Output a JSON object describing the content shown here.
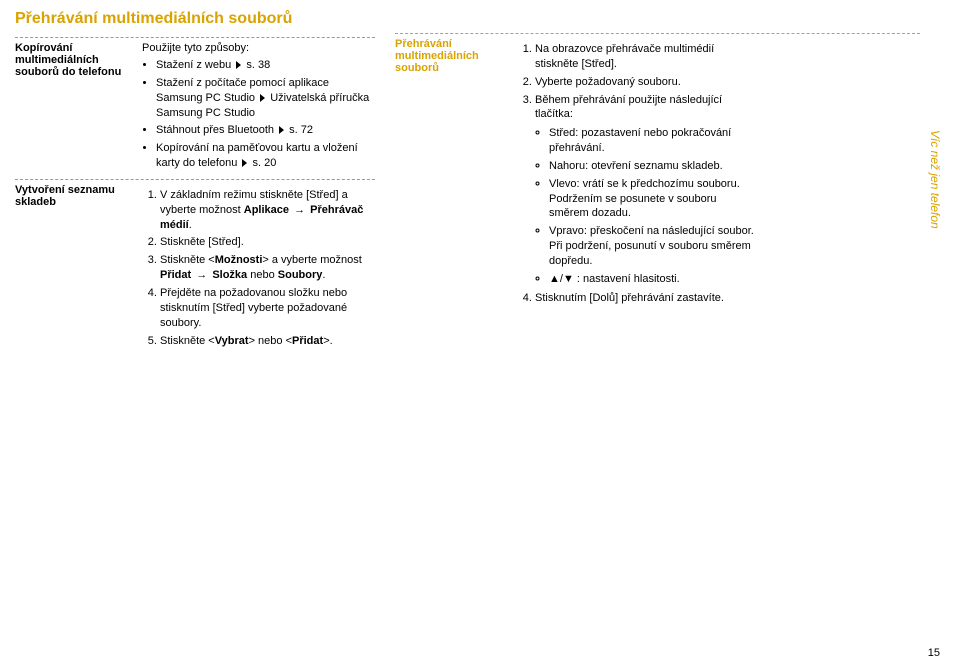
{
  "title": "Přehrávání multimediálních souborů",
  "leftBlock": {
    "section1": {
      "label": "Kopírování multimediálních souborů do telefonu",
      "intro": "Použijte tyto způsoby:",
      "items": {
        "a": "Stažení z webu",
        "a_page": "s. 38",
        "b": "Stažení z počítače pomocí aplikace Samsung PC Studio",
        "b_ref": "Uživatelská příručka Samsung PC Studio",
        "c": "Stáhnout přes Bluetooth",
        "c_page": "s. 72",
        "d": "Kopírování na paměťovou kartu a vložení karty do telefonu",
        "d_page": "s. 20"
      }
    },
    "section2": {
      "label": "Vytvoření seznamu skladeb",
      "steps": {
        "s1a": "V základním režimu stiskněte [Střed] a vyberte možnost ",
        "s1b": "Aplikace",
        "s1c": "Přehrávač médií",
        "s2": "Stiskněte [Střed].",
        "s3a": "Stiskněte <",
        "s3b": "Možnosti",
        "s3c": "> a vyberte možnost ",
        "s3d": "Přidat",
        "s3e": "Složka",
        "s3f": " nebo ",
        "s3g": "Soubory",
        "s4": "Přejděte na požadovanou složku nebo stisknutím [Střed] vyberte požadované soubory.",
        "s5a": "Stiskněte <",
        "s5b": "Vybrat",
        "s5c": "> nebo <",
        "s5d": "Přidat",
        "s5e": ">."
      }
    }
  },
  "rightBlock": {
    "label": "Přehrávání multimediálních souborů",
    "steps": {
      "s1": "Na obrazovce přehrávače multimédií stiskněte [Střed].",
      "s2": "Vyberte požadovaný souboru.",
      "s3intro": "Během přehrávání použijte následující tlačítka:",
      "s3items": {
        "a": "Střed: pozastavení nebo pokračování přehrávání.",
        "b": "Nahoru: otevření seznamu skladeb.",
        "c": "Vlevo: vrátí se k předchozímu souboru. Podržením se posunete v souboru směrem dozadu.",
        "d": "Vpravo: přeskočení na následující soubor. Při podržení, posunutí v souboru směrem dopředu.",
        "e_pre": "",
        "e_up": "▲",
        "e_sep": "/",
        "e_dn": "▼",
        "e_post": ": nastavení hlasitosti."
      },
      "s4": "Stisknutím [Dolů] přehrávání zastavíte."
    }
  },
  "sidetab": "Víc než jen telefon",
  "pageNum": "15"
}
